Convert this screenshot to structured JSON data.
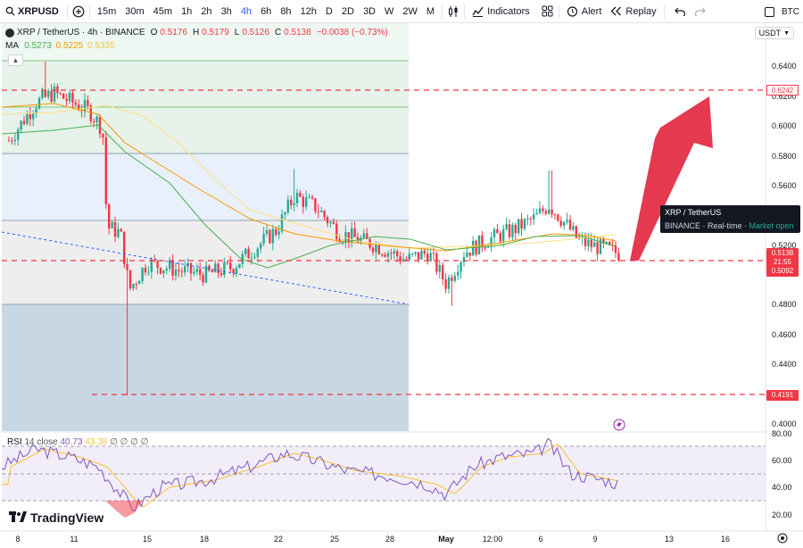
{
  "toolbar": {
    "symbol": "XRPUSD",
    "intervals": [
      "15m",
      "30m",
      "45m",
      "1h",
      "2h",
      "3h",
      "4h",
      "6h",
      "8h",
      "12h",
      "D",
      "2D",
      "3D",
      "W",
      "2W",
      "M"
    ],
    "active_interval": "4h",
    "indicators_label": "Indicators",
    "alert_label": "Alert",
    "replay_label": "Replay",
    "right_label": "BTC"
  },
  "legend": {
    "pair": "XRP / TetherUS · 4h · BINANCE",
    "o_label": "O",
    "o": "0.5176",
    "h_label": "H",
    "h": "0.5179",
    "l_label": "L",
    "l": "0.5126",
    "c_label": "C",
    "c": "0.5138",
    "change": "−0.0038 (−0.73%)",
    "ma_label": "MA",
    "ma1": "0.5273",
    "ma2": "0.5225",
    "ma3": "0.5335"
  },
  "currency": "USDT",
  "tooltip": {
    "title": "XRP / TetherUS",
    "exchange": "BINANCE",
    "data_type": "Real-time",
    "market": "Market open"
  },
  "price_axis": {
    "ticks": [
      "0.6400",
      "0.6200",
      "0.6000",
      "0.5800",
      "0.5600",
      "0.5200",
      "0.4800",
      "0.4600",
      "0.4400",
      "0.4000"
    ],
    "tag_6242": "0.6242",
    "tag_current_price": "0.5138",
    "tag_current_time": "21:55",
    "tag_5092": "0.5092",
    "tag_4191": "0.4191"
  },
  "rsi": {
    "label": "RSI",
    "params": "14 close",
    "value": "40.73",
    "ma_value": "43.38",
    "extras": "∅ ∅ ∅ ∅",
    "ticks": [
      "80.00",
      "60.00",
      "40.00",
      "20.00"
    ]
  },
  "time_axis": {
    "ticks": [
      "8",
      "11",
      "15",
      "18",
      "22",
      "25",
      "28",
      "May",
      "12:00",
      "6",
      "9",
      "13",
      "16"
    ]
  },
  "brand": "TradingView",
  "colors": {
    "up": "#22ab94",
    "down": "#f23645",
    "ma_fast": "#4caf50",
    "ma_mid": "#ff9800",
    "ma_slow": "#ffe082",
    "level_line": "#f23645",
    "rsi_line": "#7e57c2",
    "rsi_ma": "#fbc02d",
    "arrow": "#e53950"
  }
}
